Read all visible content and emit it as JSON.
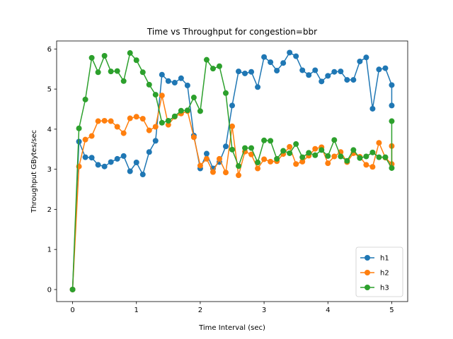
{
  "chart_data": {
    "type": "line",
    "title": "Time vs Throughput for congestion=bbr",
    "xlabel": "Time Interval (sec)",
    "ylabel": "Throughput GBytes/sec",
    "xlim": [
      -0.25,
      5.25
    ],
    "ylim": [
      -0.3,
      6.2
    ],
    "xticks": [
      0,
      1,
      2,
      3,
      4,
      5
    ],
    "yticks": [
      0,
      1,
      2,
      3,
      4,
      5,
      6
    ],
    "grid": false,
    "legend_position": "lower-right",
    "x": [
      0,
      0.1,
      0.2,
      0.3,
      0.4,
      0.5,
      0.6,
      0.7,
      0.8,
      0.9,
      1.0,
      1.1,
      1.2,
      1.3,
      1.4,
      1.5,
      1.6,
      1.7,
      1.8,
      1.9,
      2.0,
      2.1,
      2.2,
      2.3,
      2.4,
      2.5,
      2.6,
      2.7,
      2.8,
      2.9,
      3.0,
      3.1,
      3.2,
      3.3,
      3.4,
      3.5,
      3.6,
      3.7,
      3.8,
      3.9,
      4.0,
      4.1,
      4.2,
      4.3,
      4.4,
      4.5,
      4.6,
      4.7,
      4.8,
      4.9,
      5.0,
      5.0
    ],
    "series": [
      {
        "name": "h1",
        "color": "#1f77b4",
        "values": [
          0,
          3.69,
          3.3,
          3.29,
          3.11,
          3.07,
          3.18,
          3.26,
          3.33,
          2.95,
          3.17,
          2.87,
          3.43,
          3.71,
          5.36,
          5.2,
          5.16,
          5.27,
          5.09,
          3.84,
          3.02,
          3.39,
          3.02,
          3.18,
          3.57,
          4.59,
          5.44,
          5.39,
          5.43,
          5.05,
          5.8,
          5.67,
          5.46,
          5.65,
          5.91,
          5.82,
          5.47,
          5.35,
          5.47,
          5.19,
          5.33,
          5.43,
          5.44,
          5.23,
          5.23,
          5.69,
          5.79,
          4.51,
          5.49,
          5.52,
          5.1,
          4.59
        ]
      },
      {
        "name": "h2",
        "color": "#ff7f0e",
        "values": [
          0,
          3.07,
          3.74,
          3.83,
          4.2,
          4.21,
          4.2,
          4.06,
          3.9,
          4.27,
          4.31,
          4.26,
          3.97,
          4.06,
          4.84,
          4.11,
          4.31,
          4.39,
          4.45,
          3.8,
          3.09,
          3.26,
          2.93,
          3.26,
          2.92,
          4.07,
          2.85,
          3.44,
          3.37,
          3.02,
          3.25,
          3.19,
          3.2,
          3.38,
          3.56,
          3.13,
          3.19,
          3.34,
          3.51,
          3.55,
          3.15,
          3.32,
          3.43,
          3.18,
          3.4,
          3.31,
          3.11,
          3.06,
          3.66,
          3.29,
          3.13,
          3.58
        ]
      },
      {
        "name": "h3",
        "color": "#2ca02c",
        "values": [
          0,
          4.02,
          4.74,
          5.78,
          5.42,
          5.83,
          5.44,
          5.45,
          5.2,
          5.9,
          5.72,
          5.42,
          5.11,
          4.86,
          4.16,
          4.21,
          4.32,
          4.46,
          4.47,
          4.79,
          4.45,
          5.73,
          5.51,
          5.57,
          4.9,
          3.49,
          3.08,
          3.53,
          3.53,
          3.17,
          3.72,
          3.71,
          3.26,
          3.46,
          3.4,
          3.63,
          3.3,
          3.41,
          3.35,
          3.48,
          3.33,
          3.73,
          3.32,
          3.21,
          3.48,
          3.28,
          3.32,
          3.42,
          3.3,
          3.3,
          3.03,
          4.2
        ]
      }
    ]
  }
}
